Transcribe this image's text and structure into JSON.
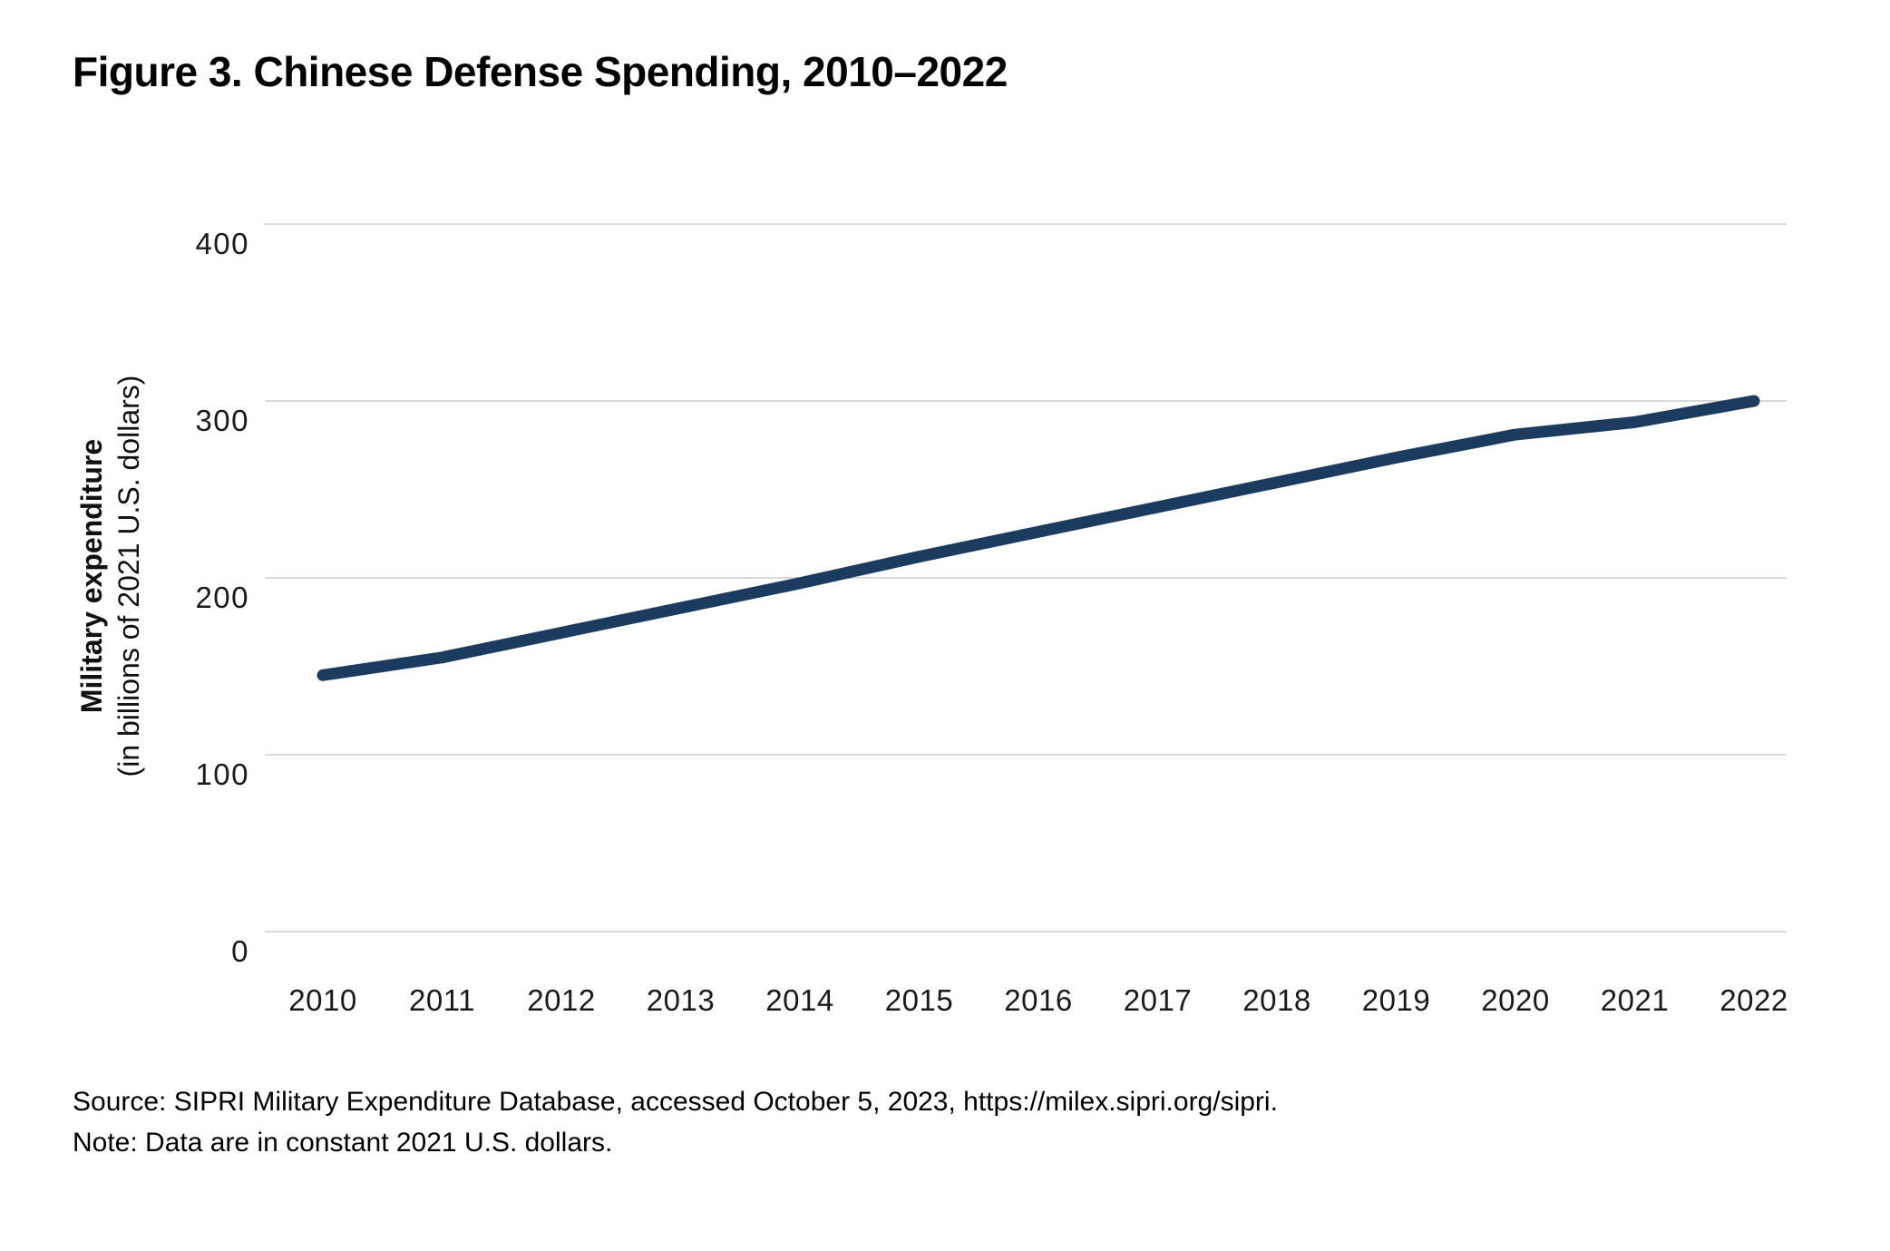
{
  "title": "Figure 3. Chinese Defense Spending, 2010–2022",
  "source": "Source: SIPRI Military Expenditure Database, accessed October 5, 2023, https://milex.sipri.org/sipri.",
  "note": "Note: Data are in constant 2021 U.S. dollars.",
  "chart_data": {
    "type": "line",
    "title": "Figure 3. Chinese Defense Spending, 2010–2022",
    "xlabel": "",
    "ylabel": "Military expenditure",
    "ylabel_sub": "(in billions of 2021 U.S. dollars)",
    "categories": [
      "2010",
      "2011",
      "2012",
      "2013",
      "2014",
      "2015",
      "2016",
      "2017",
      "2018",
      "2019",
      "2020",
      "2021",
      "2022"
    ],
    "series": [
      {
        "name": "Chinese military expenditure (billions of 2021 U.S. dollars)",
        "values": [
          145,
          155,
          169,
          183,
          197,
          212,
          226,
          240,
          254,
          268,
          281,
          288,
          300
        ]
      }
    ],
    "ylim": [
      0,
      400
    ],
    "yticks": [
      0,
      100,
      200,
      300,
      400
    ],
    "grid": "horizontal",
    "legend": "none",
    "line_color": "#1B3B5F",
    "gridline_color": "#D9D9D9",
    "tick_label_color": "#1A1A1A"
  }
}
